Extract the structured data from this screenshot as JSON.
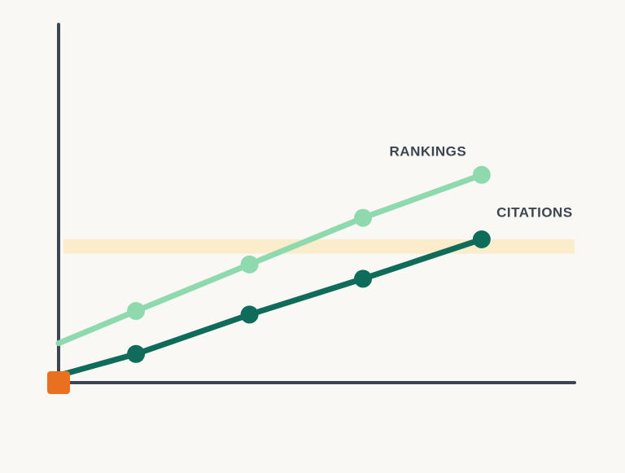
{
  "chart_data": {
    "type": "line",
    "x": [
      0,
      15,
      37,
      59,
      82
    ],
    "series": [
      {
        "name": "RANKINGS",
        "color": "#8fd9ae",
        "values": [
          11,
          20,
          33,
          46,
          58
        ]
      },
      {
        "name": "CITATIONS",
        "color": "#0f6b5a",
        "values": [
          2,
          8,
          19,
          29,
          40
        ]
      }
    ],
    "xlim": [
      0,
      100
    ],
    "ylim": [
      0,
      100
    ],
    "band": {
      "from": 36,
      "to": 40,
      "color": "#fbeccb"
    },
    "origin_color": "#e8701f"
  }
}
